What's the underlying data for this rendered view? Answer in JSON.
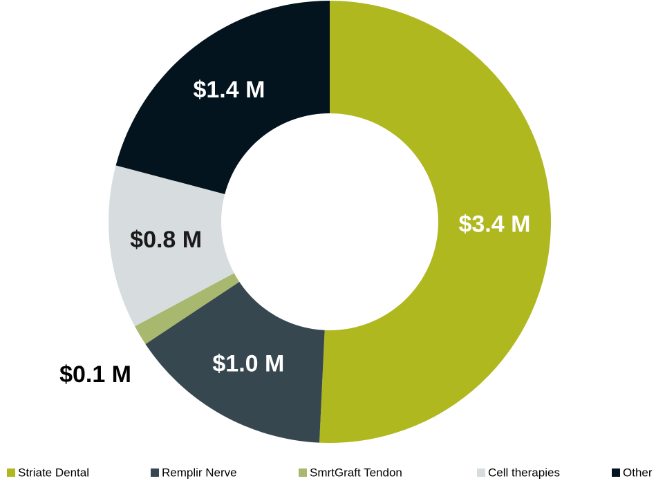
{
  "chart_data": {
    "type": "donut",
    "series": [
      {
        "name": "Striate Dental",
        "color": "#b0b820",
        "values": [
          3.4
        ],
        "value_labels": [
          "$3.4 M"
        ]
      },
      {
        "name": "Remplir Nerve",
        "color": "#37474f",
        "values": [
          1.0
        ],
        "value_labels": [
          "$1.0 M"
        ]
      },
      {
        "name": "SmrtGraft Tendon",
        "color": "#a9b86f",
        "values": [
          0.1
        ],
        "value_labels": [
          "$0.1 M"
        ]
      },
      {
        "name": "Cell therapies",
        "color": "#d7dcdf",
        "values": [
          0.8
        ],
        "value_labels": [
          "$0.8 M"
        ]
      },
      {
        "name": "Other",
        "color": "#03141e",
        "values": [
          1.4
        ],
        "value_labels": [
          "$1.4 M"
        ]
      }
    ],
    "legend": "bottom"
  }
}
